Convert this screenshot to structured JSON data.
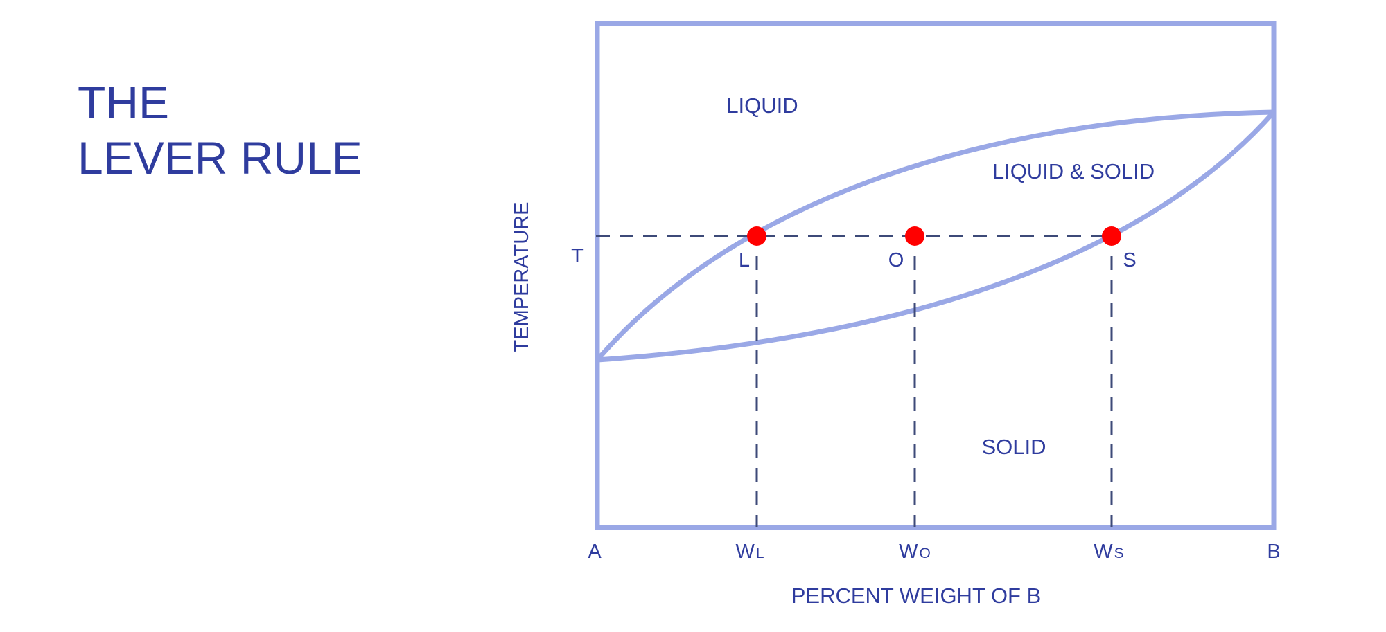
{
  "title": {
    "line1": "THE",
    "line2": "LEVER RULE"
  },
  "diagram": {
    "y_axis_label": "TEMPERATURE",
    "x_axis_label": "PERCENT WEIGHT OF B",
    "regions": {
      "liquid": "LIQUID",
      "liquid_solid": "LIQUID & SOLID",
      "solid": "SOLID"
    },
    "tie_line_label": "T",
    "points": {
      "l": "L",
      "o": "O",
      "s": "S"
    },
    "x_ticks": {
      "a": "A",
      "wl_main": "W",
      "wl_sub": "L",
      "wo_main": "W",
      "wo_sub": "O",
      "ws_main": "W",
      "ws_sub": "S",
      "b": "B"
    },
    "colors": {
      "frame": "#9aa8e6",
      "dashes": "#3d4a78",
      "points": "#ff0000",
      "text": "#2f3c9e"
    }
  }
}
